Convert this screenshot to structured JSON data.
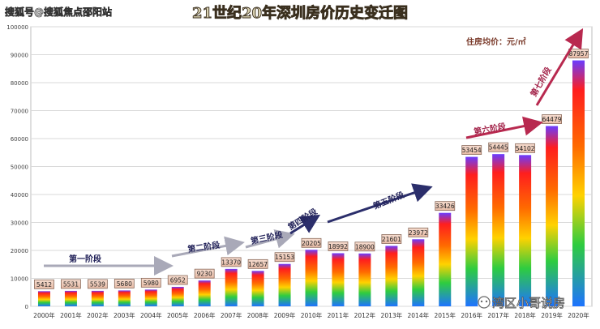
{
  "watermark_top": "搜狐号@搜狐焦点邵阳站",
  "watermark_bottom": "湾区小哥说房",
  "chart_data": {
    "type": "bar",
    "title": "21世纪20年深圳房价历史变迁图",
    "unit_label": "住房均价：元/㎡",
    "categories": [
      "2000年",
      "2001年",
      "2002年",
      "2003年",
      "2004年",
      "2005年",
      "2006年",
      "2007年",
      "2008年",
      "2009年",
      "2010年",
      "2011年",
      "2012年",
      "2013年",
      "2014年",
      "2015年",
      "2016年",
      "2017年",
      "2018年",
      "2019年",
      "2020年"
    ],
    "values": [
      5412,
      5531,
      5539,
      5680,
      5980,
      6952,
      9230,
      13370,
      12657,
      15153,
      20205,
      18992,
      18900,
      21601,
      23972,
      33426,
      53454,
      54445,
      54102,
      64479,
      87957
    ],
    "ylim": [
      0,
      100000
    ],
    "yticks": [
      0,
      10000,
      20000,
      30000,
      40000,
      50000,
      60000,
      70000,
      80000,
      90000,
      100000
    ],
    "grid": true,
    "phases": [
      {
        "label": "第一阶段",
        "from": 2000,
        "to": 2005
      },
      {
        "label": "第二阶段",
        "from": 2005,
        "to": 2007
      },
      {
        "label": "第三阶段",
        "from": 2008,
        "to": 2009
      },
      {
        "label": "第四阶段",
        "from": 2009,
        "to": 2010
      },
      {
        "label": "第五阶段",
        "from": 2010,
        "to": 2014
      },
      {
        "label": "第六阶段",
        "from": 2015,
        "to": 2018
      },
      {
        "label": "第七阶段",
        "from": 2019,
        "to": 2020
      }
    ]
  }
}
